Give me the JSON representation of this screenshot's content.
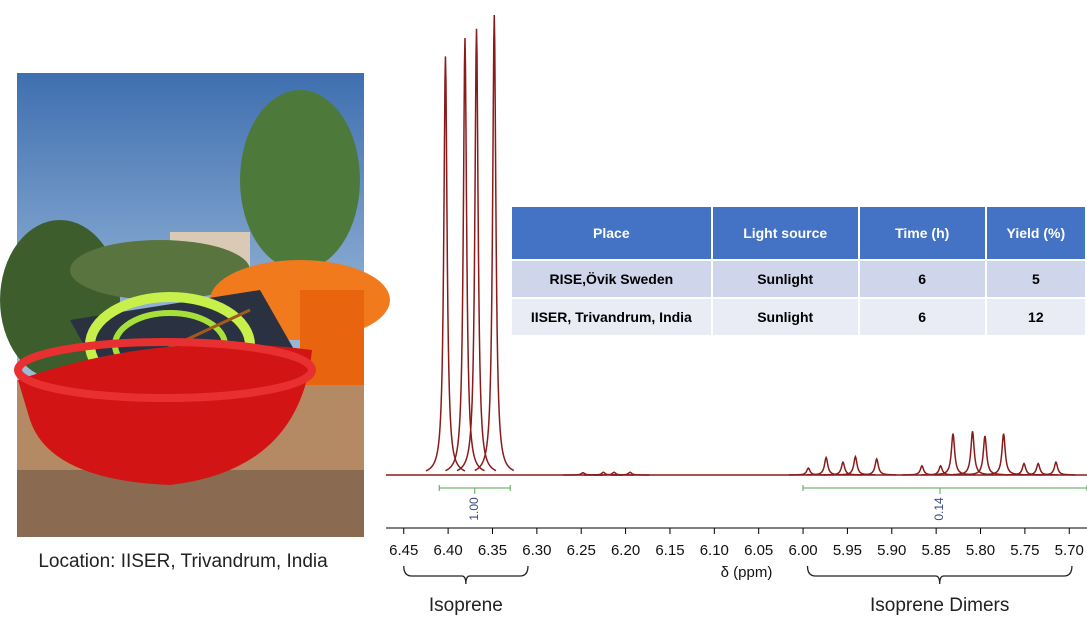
{
  "photo": {
    "caption": "Location: IISER, Trivandrum, India"
  },
  "table": {
    "header": [
      "Place",
      "Light source",
      "Time (h)",
      "Yield (%)"
    ],
    "rows": [
      [
        "RISE,Övik Sweden",
        "Sunlight",
        "6",
        "5"
      ],
      [
        "IISER, Trivandrum, India",
        "Sunlight",
        "6",
        "12"
      ]
    ]
  },
  "chart_data": {
    "type": "nmr",
    "xlabel": "δ (ppm)",
    "color": "#8b1a1a",
    "xlim": [
      6.47,
      5.68
    ],
    "xticks": [
      6.45,
      {
        "value": 6.4,
        "label": "6.40"
      },
      6.35,
      {
        "value": 6.3,
        "label": "6.30"
      },
      6.25,
      {
        "value": 6.2,
        "label": "6.20"
      },
      6.15,
      {
        "value": 6.1,
        "label": "6.10"
      },
      6.05,
      {
        "value": 6.0,
        "label": "6.00"
      },
      5.95,
      {
        "value": 5.9,
        "label": "5.90"
      },
      5.85,
      {
        "value": 5.8,
        "label": "5.80"
      },
      5.75,
      {
        "value": 5.7,
        "label": "5.70"
      }
    ],
    "x": [
      6.403,
      6.381,
      6.368,
      6.348,
      6.248,
      6.225,
      6.213,
      6.195,
      5.994,
      5.974,
      5.955,
      5.941,
      5.917,
      5.866,
      5.845,
      5.831,
      5.809,
      5.795,
      5.774,
      5.751,
      5.735,
      5.715
    ],
    "values": [
      91,
      95,
      97,
      100,
      0.5,
      0.6,
      0.6,
      0.6,
      1.5,
      3.8,
      2.8,
      4,
      3.5,
      2,
      2,
      9,
      9.5,
      8.5,
      9,
      2.5,
      2.5,
      2.8
    ],
    "integrals": {
      "ranges": [
        [
          6.41,
          6.33
        ],
        [
          6.0,
          5.68
        ]
      ],
      "values": [
        1,
        0.14
      ],
      "value_labels": [
        "1.00",
        "0.14"
      ]
    },
    "annotations": [
      {
        "text": "Isoprene",
        "range": [
          6.45,
          6.31
        ]
      },
      {
        "text": "Isoprene Dimers",
        "range": [
          5.995,
          5.697
        ]
      }
    ]
  }
}
